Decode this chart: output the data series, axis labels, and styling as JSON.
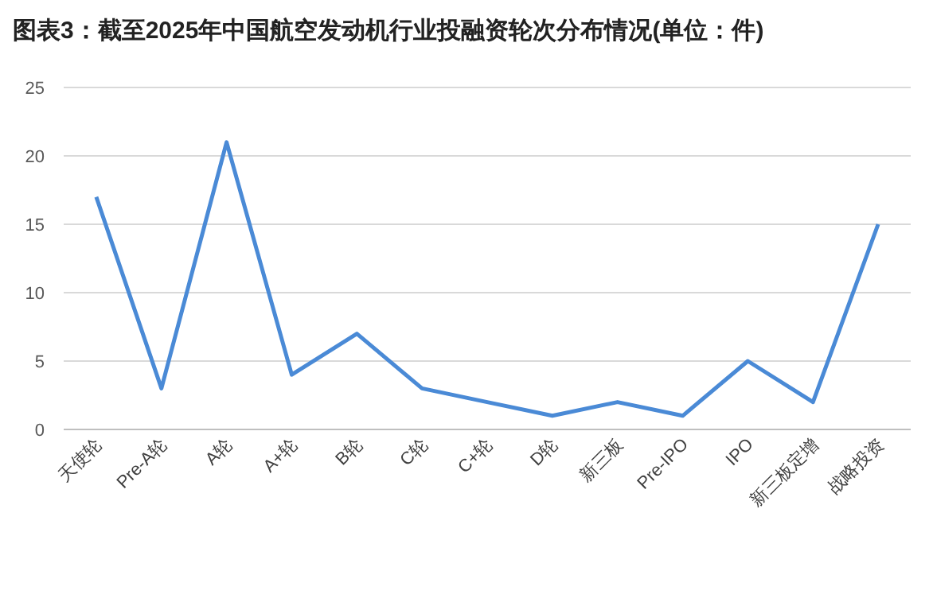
{
  "chart_data": {
    "type": "line",
    "title": "图表3：截至2025年中国航空发动机行业投融资轮次分布情况(单位：件)",
    "categories": [
      "天使轮",
      "Pre-A轮",
      "A轮",
      "A+轮",
      "B轮",
      "C轮",
      "C+轮",
      "D轮",
      "新三板",
      "Pre-IPO",
      "IPO",
      "新三板定增",
      "战略投资"
    ],
    "series": [
      {
        "color": "#4a8ad6",
        "values": [
          17,
          3,
          21,
          4,
          7,
          3,
          2,
          1,
          2,
          1,
          5,
          2,
          15
        ]
      }
    ],
    "ylim": [
      0,
      25
    ],
    "yticks": [
      0,
      5,
      10,
      15,
      20,
      25
    ],
    "grid": "y",
    "marker": "none",
    "line_style": "solid"
  }
}
